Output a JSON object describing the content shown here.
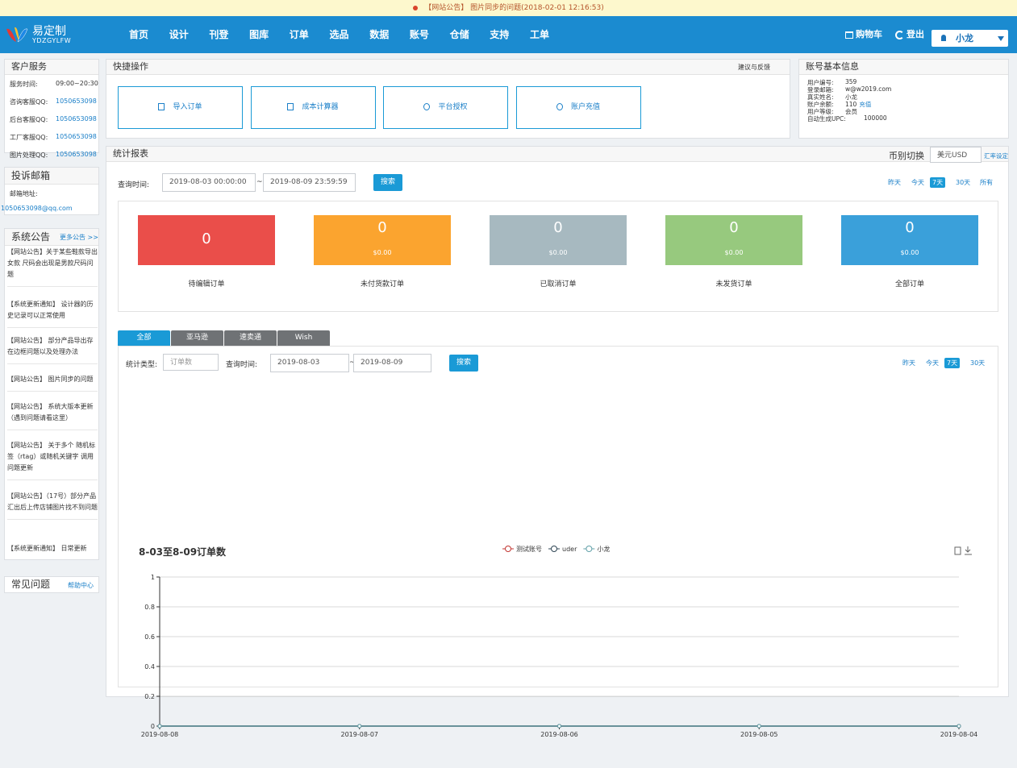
{
  "notice": "【网站公告】 图片同步的问题(2018-02-01 12:16:53)",
  "nav": {
    "logo": "易定制",
    "logo_sub": "YDZGYLFW",
    "items": [
      "首页",
      "设计",
      "刊登",
      "图库",
      "订单",
      "选品",
      "数据",
      "账号",
      "仓储",
      "支持",
      "工单"
    ],
    "cart": "购物车",
    "logout": "登出",
    "user": "小龙"
  },
  "sidebar": {
    "service": {
      "title": "客户服务",
      "rows": [
        {
          "label": "服务时间:",
          "value": "09:00~20:30"
        },
        {
          "label": "咨询客服QQ:",
          "value": "1050653098"
        },
        {
          "label": "后台客服QQ:",
          "value": "1050653098"
        },
        {
          "label": "工厂客服QQ:",
          "value": "1050653098"
        },
        {
          "label": "图片处理QQ:",
          "value": "1050653098"
        }
      ]
    },
    "email": {
      "title": "投诉邮箱",
      "label": "邮箱地址:",
      "value": "1050653098@qq.com"
    },
    "notices": {
      "title": "系统公告",
      "more": "更多公告 >>",
      "items": [
        "【网站公告】关于某些鞋款导出女款 尺码会出现是男款尺码问题",
        "【系统更新通知】 设计器的历史记录可以正常使用",
        "【网站公告】 部分产品导出存在边框问题以及处理办法",
        "【网站公告】 图片同步的问题",
        "【网站公告】 系统大版本更新（遇到问题请看这里）",
        "【网站公告】 关于多个 随机标签（rtag）或随机关键字 调用问题更新",
        "【网站公告】（17号）部分产品 汇出后上传店铺图片找不到问题",
        "【系统更新通知】 日常更新"
      ]
    },
    "faq": {
      "title": "常见问题",
      "link": "帮助中心"
    }
  },
  "quick": {
    "title": "快捷操作",
    "feedback": "建议与反馈",
    "buttons": [
      "导入订单",
      "成本计算器",
      "平台授权",
      "账户充值"
    ]
  },
  "account": {
    "title": "账号基本信息",
    "rows": [
      {
        "label": "用户编号:",
        "value": "359"
      },
      {
        "label": "登录邮箱:",
        "value": "w@w2019.com"
      },
      {
        "label": "真实姓名:",
        "value": "小龙"
      },
      {
        "label": "账户余额:",
        "value": "110",
        "link": "充值"
      },
      {
        "label": "用户等级:",
        "value": "会员"
      },
      {
        "label": "自动生成UPC:",
        "value": "100000"
      }
    ]
  },
  "report": {
    "title": "统计报表",
    "currency_label": "币别切换",
    "currency": "美元USD",
    "rate": "汇率设定",
    "query_label": "查询时间:",
    "start": "2019-08-03 00:00:00",
    "sep": "~",
    "end": "2019-08-09 23:59:59",
    "search": "搜索",
    "ranges": [
      "昨天",
      "今天",
      "7天",
      "30天",
      "所有"
    ],
    "active_range": 2,
    "cards": [
      {
        "label": "待编辑订单",
        "count": 0,
        "color": "#ea4e4a"
      },
      {
        "label": "未付货款订单",
        "count": 0,
        "amount": "$0.00",
        "color": "#fba42f"
      },
      {
        "label": "已取消订单",
        "count": 0,
        "amount": "$0.00",
        "color": "#a7b9c0"
      },
      {
        "label": "未发货订单",
        "count": 0,
        "amount": "$0.00",
        "color": "#97c97e"
      },
      {
        "label": "全部订单",
        "count": 0,
        "amount": "$0.00",
        "color": "#3aa0da"
      }
    ]
  },
  "tabs": {
    "items": [
      "全部",
      "亚马逊",
      "速卖通",
      "Wish"
    ],
    "active": 0
  },
  "filter": {
    "type_label": "统计类型:",
    "type_placeholder": "订单数",
    "query_label": "查询时间:",
    "start": "2019-08-03",
    "sep": "~",
    "end": "2019-08-09",
    "search": "搜索",
    "ranges": [
      "昨天",
      "今天",
      "7天",
      "30天"
    ],
    "active_range": 2
  },
  "chart_data": {
    "type": "line",
    "title": "8-03至8-09订单数",
    "categories": [
      "2019-08-08",
      "2019-08-07",
      "2019-08-06",
      "2019-08-05",
      "2019-08-04"
    ],
    "series": [
      {
        "name": "测试账号",
        "color": "#c23531",
        "values": [
          0,
          0,
          0,
          0,
          0
        ]
      },
      {
        "name": "uder",
        "color": "#2f4554",
        "values": [
          0,
          0,
          0,
          0,
          0
        ]
      },
      {
        "name": "小龙",
        "color": "#61a0a8",
        "values": [
          0,
          0,
          0,
          0,
          0
        ]
      }
    ],
    "ylim": [
      0,
      1
    ],
    "yticks": [
      0,
      0.2,
      0.4,
      0.6,
      0.8,
      1
    ],
    "grid": true,
    "legend": "top"
  }
}
